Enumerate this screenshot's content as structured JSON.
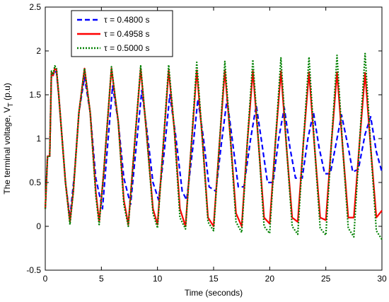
{
  "chart_data": {
    "type": "line",
    "title": "",
    "xlabel": "Time (seconds)",
    "ylabel_parts": {
      "main": "The terminal voltage, V",
      "subscript": "T",
      "suffix": " (p.u)"
    },
    "xlim": [
      0,
      30
    ],
    "ylim": [
      -0.5,
      2.5
    ],
    "xticks": [
      0,
      5,
      10,
      15,
      20,
      25,
      30
    ],
    "xtick_labels": [
      "0",
      "5",
      "10",
      "15",
      "20",
      "25",
      "30"
    ],
    "yticks": [
      -0.5,
      0,
      0.5,
      1,
      1.5,
      2,
      2.5
    ],
    "ytick_labels": [
      "-0.5",
      "0",
      "0.5",
      "1",
      "1.5",
      "2",
      "2.5"
    ],
    "grid": false,
    "legend_position": "top-left",
    "series": [
      {
        "name": "τ = 0.4800 s",
        "color": "#0000ff",
        "dash": "dashed",
        "x": [
          0,
          0.2,
          0.4,
          0.55,
          0.7,
          0.85,
          1.0,
          1.2,
          1.5,
          1.8,
          2.2,
          2.6,
          3.0,
          3.5,
          4.0,
          4.5,
          5.1,
          5.6,
          6.0,
          6.5,
          7.0,
          7.6,
          8.1,
          8.6,
          9.1,
          9.6,
          10.1,
          10.6,
          11.1,
          11.6,
          12.2,
          12.6,
          13.2,
          13.6,
          14.1,
          14.6,
          15.2,
          15.7,
          16.2,
          16.7,
          17.2,
          17.7,
          18.3,
          18.8,
          19.3,
          19.8,
          20.3,
          20.8,
          21.3,
          21.8,
          22.3,
          22.9,
          23.4,
          23.9,
          24.4,
          24.9,
          25.4,
          26.0,
          26.4,
          27.0,
          27.4,
          27.9,
          28.5,
          29.0,
          29.5,
          30.0
        ],
        "y": [
          0.2,
          0.8,
          0.8,
          1.75,
          1.72,
          1.78,
          1.75,
          1.5,
          1.0,
          0.5,
          0.1,
          0.6,
          1.3,
          1.7,
          1.3,
          0.55,
          0.2,
          1.0,
          1.6,
          1.2,
          0.55,
          0.25,
          0.9,
          1.55,
          1.05,
          0.5,
          0.3,
          0.85,
          1.5,
          1.05,
          0.4,
          0.3,
          0.95,
          1.45,
          1.0,
          0.45,
          0.4,
          0.95,
          1.45,
          0.95,
          0.45,
          0.45,
          1.0,
          1.38,
          0.95,
          0.5,
          0.5,
          1.0,
          1.35,
          0.9,
          0.55,
          0.55,
          1.0,
          1.3,
          0.9,
          0.6,
          0.6,
          1.0,
          1.27,
          0.9,
          0.62,
          0.65,
          1.05,
          1.25,
          0.85,
          0.62
        ]
      },
      {
        "name": "τ = 0.4958 s",
        "color": "#ff0000",
        "dash": "solid",
        "x": [
          0,
          0.2,
          0.4,
          0.55,
          0.7,
          0.85,
          1.0,
          1.2,
          1.5,
          1.8,
          2.2,
          2.5,
          3.0,
          3.5,
          4.0,
          4.5,
          4.8,
          5.2,
          5.9,
          6.5,
          7.0,
          7.4,
          8.0,
          8.5,
          9.0,
          9.6,
          10.0,
          10.5,
          11.0,
          11.5,
          12.0,
          12.5,
          13.0,
          13.5,
          14.0,
          14.5,
          15.0,
          15.5,
          16.0,
          16.5,
          17.0,
          17.5,
          18.0,
          18.5,
          19.0,
          19.5,
          20.0,
          20.5,
          21.0,
          21.5,
          22.0,
          22.5,
          23.0,
          23.5,
          24.0,
          24.5,
          25.0,
          25.5,
          26.0,
          26.5,
          27.0,
          27.5,
          28.0,
          28.5,
          29.0,
          29.5,
          30.0
        ],
        "y": [
          0.2,
          0.8,
          0.8,
          1.75,
          1.72,
          1.8,
          1.78,
          1.5,
          1.0,
          0.5,
          0.05,
          0.4,
          1.3,
          1.8,
          1.3,
          0.4,
          0.05,
          0.6,
          1.8,
          1.2,
          0.3,
          0.02,
          1.0,
          1.8,
          1.1,
          0.2,
          0.02,
          0.9,
          1.78,
          1.1,
          0.2,
          0.0,
          0.9,
          1.78,
          1.0,
          0.1,
          0.0,
          0.9,
          1.78,
          1.0,
          0.15,
          0.0,
          0.95,
          1.77,
          0.95,
          0.1,
          0.03,
          0.95,
          1.77,
          0.9,
          0.1,
          0.05,
          0.95,
          1.76,
          0.9,
          0.1,
          0.07,
          0.95,
          1.76,
          0.9,
          0.1,
          0.1,
          0.95,
          1.75,
          0.9,
          0.1,
          0.18
        ]
      },
      {
        "name": "τ = 0.5000 s",
        "color": "#008000",
        "dash": "dotted",
        "x": [
          0,
          0.2,
          0.4,
          0.55,
          0.7,
          0.85,
          1.0,
          1.2,
          1.5,
          1.8,
          2.2,
          2.5,
          3.0,
          3.5,
          4.0,
          4.5,
          4.8,
          5.2,
          5.9,
          6.5,
          7.0,
          7.4,
          8.0,
          8.5,
          9.0,
          9.6,
          10.0,
          10.5,
          11.0,
          11.5,
          12.0,
          12.5,
          13.0,
          13.5,
          14.0,
          14.5,
          15.0,
          15.5,
          16.0,
          16.5,
          17.0,
          17.5,
          18.0,
          18.5,
          19.0,
          19.5,
          20.0,
          20.5,
          21.0,
          21.5,
          22.0,
          22.5,
          23.0,
          23.5,
          24.0,
          24.5,
          25.0,
          25.5,
          26.0,
          26.5,
          27.0,
          27.5,
          28.0,
          28.5,
          29.0,
          29.5,
          30.0
        ],
        "y": [
          0.2,
          0.8,
          0.8,
          1.77,
          1.73,
          1.83,
          1.8,
          1.5,
          1.0,
          0.5,
          0.02,
          0.4,
          1.3,
          1.8,
          1.3,
          0.35,
          0.02,
          0.6,
          1.82,
          1.2,
          0.25,
          0.0,
          1.0,
          1.83,
          1.1,
          0.15,
          -0.02,
          0.9,
          1.84,
          1.1,
          0.1,
          -0.03,
          0.9,
          1.87,
          1.0,
          0.05,
          -0.05,
          0.9,
          1.88,
          1.0,
          0.05,
          -0.07,
          0.95,
          1.9,
          0.95,
          0.0,
          -0.08,
          0.95,
          1.92,
          0.9,
          0.0,
          -0.09,
          0.95,
          1.93,
          0.9,
          -0.02,
          -0.1,
          0.95,
          1.95,
          0.9,
          -0.02,
          -0.12,
          0.95,
          1.97,
          0.9,
          -0.05,
          -0.15
        ]
      }
    ]
  }
}
